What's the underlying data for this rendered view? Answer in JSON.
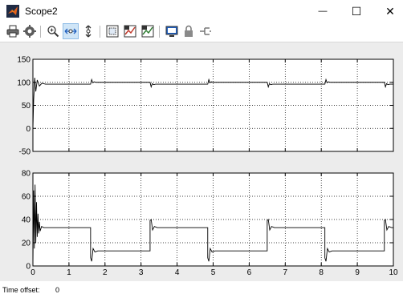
{
  "window": {
    "title": "Scope2",
    "minimize_glyph": "—",
    "maximize_glyph": "☐",
    "close_glyph": "✕"
  },
  "toolbar": {
    "icons": [
      "print-icon",
      "parameters-icon",
      "zoom-icon",
      "zoom-x-icon",
      "zoom-y-icon",
      "autoscale-icon",
      "save-axes-settings-icon",
      "restore-axes-settings-icon",
      "floating-scope-icon",
      "lock-axes-icon",
      "signal-selector-icon"
    ]
  },
  "status": {
    "label": "Time offset:",
    "value": "0"
  },
  "colors": {
    "plot_bg": "#ffffff",
    "figure_bg": "#ececec",
    "trace": "#000000",
    "grid": "#000000"
  },
  "chart_data": [
    {
      "type": "line",
      "title": "",
      "xlabel": "",
      "ylabel": "",
      "xlim": [
        0,
        10
      ],
      "ylim": [
        -50,
        150
      ],
      "yticks": [
        -50,
        0,
        50,
        100,
        150
      ],
      "xticks": [],
      "grid": true,
      "series": [
        {
          "x": [
            0,
            0.02,
            0.05,
            0.08,
            0.12,
            0.18,
            0.25,
            0.35,
            0.5,
            1.6,
            1.63,
            1.66,
            1.7,
            1.75,
            3.25,
            3.28,
            3.31,
            3.35,
            3.4,
            4.85,
            4.88,
            4.91,
            4.95,
            5.0,
            6.5,
            6.53,
            6.56,
            6.6,
            6.65,
            8.1,
            8.13,
            8.16,
            8.2,
            8.25,
            9.75,
            9.78,
            9.81,
            9.85,
            9.9,
            10
          ],
          "y": [
            0,
            60,
            110,
            80,
            105,
            92,
            98,
            96,
            96,
            96,
            106,
            99,
            101,
            100,
            100,
            90,
            97,
            95,
            96,
            96,
            106,
            99,
            101,
            100,
            100,
            90,
            97,
            95,
            96,
            96,
            106,
            99,
            101,
            100,
            100,
            90,
            97,
            95,
            96,
            96
          ]
        }
      ]
    },
    {
      "type": "line",
      "title": "",
      "xlabel": "",
      "ylabel": "",
      "xlim": [
        0,
        10
      ],
      "ylim": [
        0,
        80
      ],
      "yticks": [
        0,
        20,
        40,
        60,
        80
      ],
      "xticks": [
        0,
        1,
        2,
        3,
        4,
        5,
        6,
        7,
        8,
        9,
        10
      ],
      "grid": true,
      "series": [
        {
          "x": [
            0,
            0.02,
            0.04,
            0.06,
            0.08,
            0.1,
            0.12,
            0.14,
            0.16,
            0.18,
            0.2,
            0.24,
            0.3,
            0.4,
            1.6,
            1.6,
            1.63,
            1.67,
            1.72,
            1.8,
            3.25,
            3.25,
            3.28,
            3.32,
            3.37,
            3.45,
            4.85,
            4.85,
            4.88,
            4.92,
            4.97,
            5.05,
            6.5,
            6.5,
            6.53,
            6.57,
            6.62,
            6.7,
            8.1,
            8.1,
            8.13,
            8.17,
            8.22,
            8.3,
            9.75,
            9.75,
            9.78,
            9.82,
            9.87,
            9.95,
            10
          ],
          "y": [
            0,
            65,
            15,
            70,
            20,
            55,
            25,
            45,
            28,
            38,
            30,
            34,
            33,
            33,
            33,
            7,
            4,
            15,
            12,
            13,
            13,
            39,
            40,
            31,
            34,
            33,
            33,
            7,
            4,
            15,
            12,
            13,
            13,
            39,
            40,
            31,
            34,
            33,
            33,
            7,
            4,
            15,
            12,
            13,
            13,
            39,
            40,
            31,
            34,
            33,
            33
          ]
        }
      ]
    }
  ]
}
